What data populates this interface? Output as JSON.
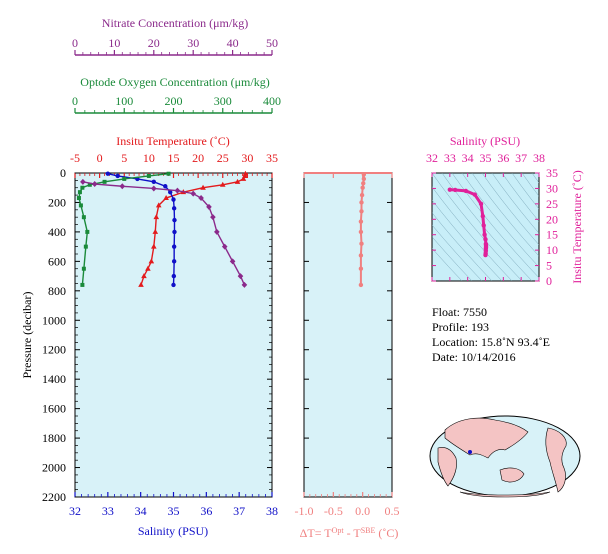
{
  "colors": {
    "nitrate": "#8b2a8b",
    "oxygen": "#1a8a3a",
    "temperature": "#e31a1c",
    "salinity": "#1010c8",
    "delta": "#f08080",
    "ts": "#e0209a",
    "panel_bg": "#d8f2f8",
    "ts_bg": "#c8eef8"
  },
  "chart_data": [
    {
      "type": "line",
      "panel": "profiles",
      "ylabel": "Pressure (decibar)",
      "ylim": [
        2200,
        0
      ],
      "yticks": [
        "0",
        "200",
        "400",
        "600",
        "800",
        "1000",
        "1200",
        "1400",
        "1600",
        "1800",
        "2000",
        "2200"
      ],
      "axes": {
        "nitrate": {
          "label": "Nitrate Concentration (μm/kg)",
          "range": [
            0,
            50
          ],
          "ticks": [
            "0",
            "10",
            "20",
            "30",
            "40",
            "50"
          ]
        },
        "oxygen": {
          "label": "Optode Oxygen Concentration (μm/kg)",
          "range": [
            0,
            400
          ],
          "ticks": [
            "0",
            "100",
            "200",
            "300",
            "400"
          ]
        },
        "temperature": {
          "label": "Insitu Temperature (˚C)",
          "range": [
            -5,
            35
          ],
          "ticks": [
            "-5",
            "0",
            "5",
            "10",
            "15",
            "20",
            "25",
            "30",
            "35"
          ]
        },
        "salinity": {
          "label": "Salinity (PSU)",
          "range": [
            32,
            38
          ],
          "ticks": [
            "32",
            "33",
            "34",
            "35",
            "36",
            "37",
            "38"
          ]
        }
      },
      "series": [
        {
          "axis": "temperature",
          "marker": "triangle",
          "x": [
            29.6,
            29.5,
            29.2,
            28.0,
            25.0,
            21.0,
            17.0,
            13.5,
            12.0,
            11.5,
            11.3,
            11.0,
            10.5,
            9.8,
            9.0,
            8.4
          ],
          "y": [
            5,
            20,
            40,
            60,
            80,
            100,
            130,
            170,
            220,
            300,
            400,
            500,
            600,
            650,
            700,
            760
          ]
        },
        {
          "axis": "salinity",
          "marker": "circle",
          "x": [
            33.0,
            33.3,
            33.9,
            34.4,
            34.75,
            34.9,
            35.0,
            35.02,
            35.03,
            35.03,
            35.02,
            35.02,
            35.01,
            35.0
          ],
          "y": [
            5,
            20,
            40,
            60,
            90,
            130,
            180,
            240,
            320,
            400,
            500,
            600,
            700,
            760
          ]
        },
        {
          "axis": "oxygen",
          "marker": "square",
          "x": [
            190,
            150,
            100,
            60,
            30,
            15,
            10,
            8,
            12,
            18,
            25,
            22,
            18,
            15
          ],
          "y": [
            5,
            20,
            40,
            60,
            80,
            100,
            130,
            170,
            220,
            300,
            400,
            500,
            650,
            760
          ]
        },
        {
          "axis": "nitrate",
          "marker": "diamond",
          "x": [
            2,
            5,
            12,
            20,
            26,
            30,
            32,
            34,
            35,
            36,
            38,
            40,
            42,
            43
          ],
          "y": [
            60,
            75,
            90,
            105,
            120,
            140,
            170,
            230,
            300,
            400,
            500,
            600,
            700,
            760
          ]
        }
      ]
    },
    {
      "type": "line",
      "panel": "delta",
      "xlabel_main": "ΔT= T",
      "xlabel_sup1": "Opt",
      "xlabel_mid": " - T",
      "xlabel_sup2": "SBE",
      "xlabel_end": " (˚C)",
      "xlim": [
        -1.0,
        0.5
      ],
      "xticks": [
        "-1.0",
        "-0.5",
        "0.0",
        "0.5"
      ],
      "series": [
        {
          "marker": "circle",
          "x": [
            0.02,
            0.02,
            0.01,
            0.0,
            -0.01,
            -0.02,
            -0.02,
            -0.03,
            -0.03,
            -0.02,
            -0.03,
            -0.03,
            -0.03
          ],
          "y": [
            10,
            40,
            70,
            100,
            150,
            200,
            260,
            330,
            400,
            480,
            560,
            650,
            760
          ]
        }
      ]
    },
    {
      "type": "scatter",
      "panel": "ts",
      "xlabel": "Salinity (PSU)",
      "ylabel": "Insitu Temperature (˚C)",
      "xlim": [
        32,
        38
      ],
      "ylim": [
        0,
        35
      ],
      "xticks": [
        "32",
        "33",
        "34",
        "35",
        "36",
        "37",
        "38"
      ],
      "yticks": [
        "0",
        "5",
        "10",
        "15",
        "20",
        "25",
        "30",
        "35"
      ],
      "series": [
        {
          "x": [
            33.0,
            33.3,
            33.9,
            34.4,
            34.75,
            34.85,
            34.9,
            34.95,
            35.0,
            35.02,
            35.03,
            35.03,
            35.02,
            35.02,
            35.01,
            35.0
          ],
          "y": [
            29.6,
            29.5,
            29.2,
            28.0,
            25.0,
            21.0,
            18.0,
            15.0,
            13.5,
            12.0,
            11.5,
            11.0,
            10.5,
            9.8,
            9.0,
            8.4
          ]
        }
      ]
    }
  ],
  "info": {
    "float": "Float:  7550",
    "profile": "Profile:  193",
    "location": "Location:  15.8˚N  93.4˚E",
    "date": "Date:  10/14/2016"
  }
}
